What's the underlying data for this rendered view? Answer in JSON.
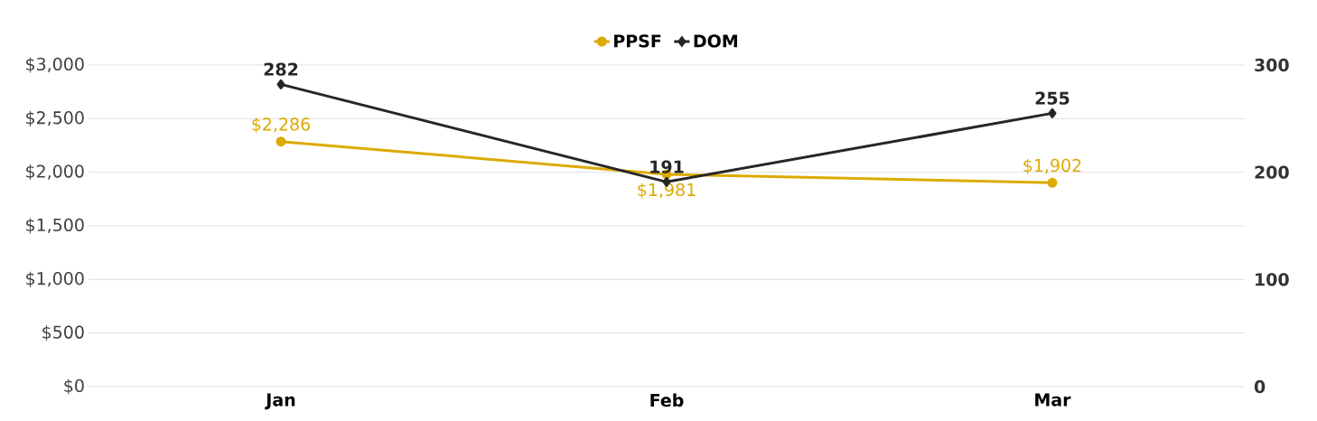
{
  "chart_data": {
    "type": "line",
    "categories": [
      "Jan",
      "Feb",
      "Mar"
    ],
    "ylim": [
      0,
      3000
    ],
    "yticks": [
      {
        "value": 0,
        "label": "$0"
      },
      {
        "value": 500,
        "label": "$500"
      },
      {
        "value": 1000,
        "label": "$1,000"
      },
      {
        "value": 1500,
        "label": "$1,500"
      },
      {
        "value": 2000,
        "label": "$2,000"
      },
      {
        "value": 2500,
        "label": "$2,500"
      },
      {
        "value": 3000,
        "label": "$3,000"
      }
    ],
    "y2lim": [
      0,
      300
    ],
    "y2ticks": [
      0,
      100,
      200,
      300
    ],
    "grid": "y",
    "legend": "top",
    "series": [
      {
        "name": "PPSF",
        "color": "#dcaa00",
        "marker": "circle",
        "values": [
          2286,
          1981,
          1902
        ],
        "value_labels": [
          "$2,286",
          "$1,981",
          "$1,902"
        ]
      },
      {
        "name": "DOM",
        "color": "#262626",
        "marker": "diamond",
        "axis": "y2",
        "values": [
          282,
          191,
          255
        ],
        "value_labels": [
          "282",
          "191",
          "255"
        ]
      }
    ]
  }
}
